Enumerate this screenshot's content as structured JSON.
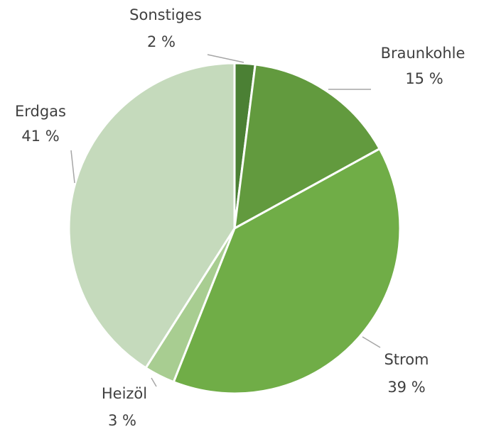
{
  "chart_data": {
    "type": "pie",
    "categories": [
      "Sonstiges",
      "Braunkohle",
      "Strom",
      "Heizöl",
      "Erdgas"
    ],
    "values": [
      2,
      15,
      39,
      3,
      41
    ],
    "value_labels": [
      "2 %",
      "15 %",
      "39 %",
      "3 %",
      "41 %"
    ],
    "colors": [
      "#4b8034",
      "#629a3e",
      "#70ad47",
      "#a8cd91",
      "#c5dabc"
    ]
  }
}
